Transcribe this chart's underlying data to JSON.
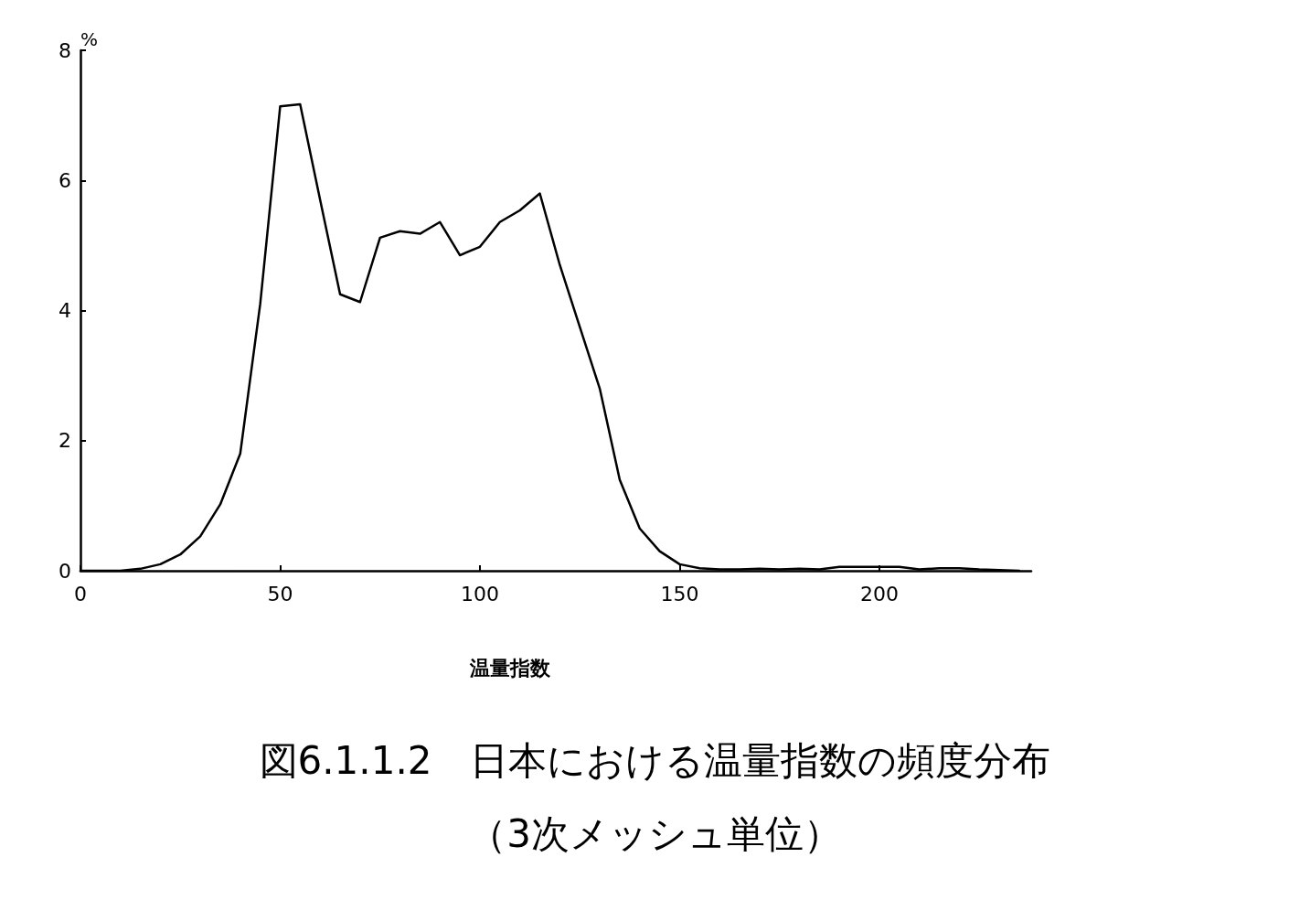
{
  "chart_data": {
    "type": "line",
    "title": "図6.1.1.2　日本における温量指数の頻度分布",
    "subtitle": "（3次メッシュ単位）",
    "xlabel": "温量指数",
    "ylabel": "%",
    "x": [
      0,
      5,
      10,
      15,
      20,
      25,
      30,
      35,
      40,
      45,
      50,
      55,
      60,
      65,
      70,
      75,
      80,
      85,
      90,
      95,
      100,
      105,
      110,
      115,
      120,
      125,
      130,
      135,
      140,
      145,
      150,
      155,
      160,
      165,
      170,
      175,
      180,
      185,
      190,
      195,
      200,
      205,
      210,
      215,
      220,
      225,
      230,
      235
    ],
    "series": [
      {
        "color": "#000000",
        "values": [
          0,
          0,
          0,
          0.03,
          0.1,
          0.25,
          0.53,
          1.02,
          1.8,
          4.1,
          7.14,
          7.17,
          5.7,
          4.25,
          4.13,
          5.12,
          5.22,
          5.18,
          5.36,
          4.85,
          4.98,
          5.36,
          5.54,
          5.8,
          4.7,
          3.75,
          2.8,
          1.4,
          0.65,
          0.3,
          0.1,
          0.04,
          0.02,
          0.02,
          0.03,
          0.02,
          0.03,
          0.02,
          0.06,
          0.06,
          0.06,
          0.06,
          0.02,
          0.04,
          0.04,
          0.02,
          0.01,
          0
        ]
      }
    ],
    "xlim": [
      0,
      238
    ],
    "xticks": [
      0,
      50,
      100,
      150,
      200
    ],
    "ylim": [
      0,
      8
    ],
    "yticks": [
      0,
      2,
      4,
      6,
      8
    ],
    "marker": "none",
    "line_style": "solid"
  }
}
